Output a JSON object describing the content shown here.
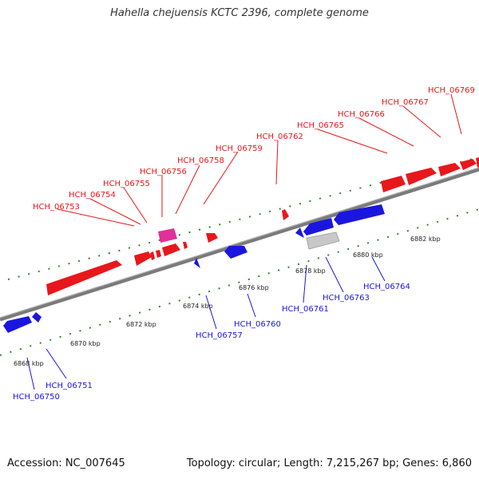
{
  "title": "Hahella chejuensis KCTC 2396, complete genome",
  "footer": {
    "accession": "Accession: NC_007645",
    "summary": "Topology: circular; Length: 7,215,267 bp; Genes: 6,860"
  },
  "colors": {
    "forward": "#e8171b",
    "reverse": "#1a16e0",
    "rna": "#e0309a",
    "pseudo": "#c8c8c8",
    "backbone": "#7a7a7a",
    "ticks": "#2a8a2a"
  },
  "ticks": [
    "6868 kbp",
    "6870 kbp",
    "6872 kbp",
    "6874 kbp",
    "6876 kbp",
    "6878 kbp",
    "6880 kbp",
    "6882 kbp"
  ],
  "forward_genes": [
    "HCH_06753",
    "HCH_06754",
    "HCH_06755",
    "HCH_06756",
    "HCH_06758",
    "HCH_06759",
    "HCH_06762",
    "HCH_06765",
    "HCH_06766",
    "HCH_06767",
    "HCH_06769"
  ],
  "reverse_genes": [
    "HCH_06750",
    "HCH_06751",
    "HCH_06757",
    "HCH_06760",
    "HCH_06761",
    "HCH_06763",
    "HCH_06764"
  ]
}
